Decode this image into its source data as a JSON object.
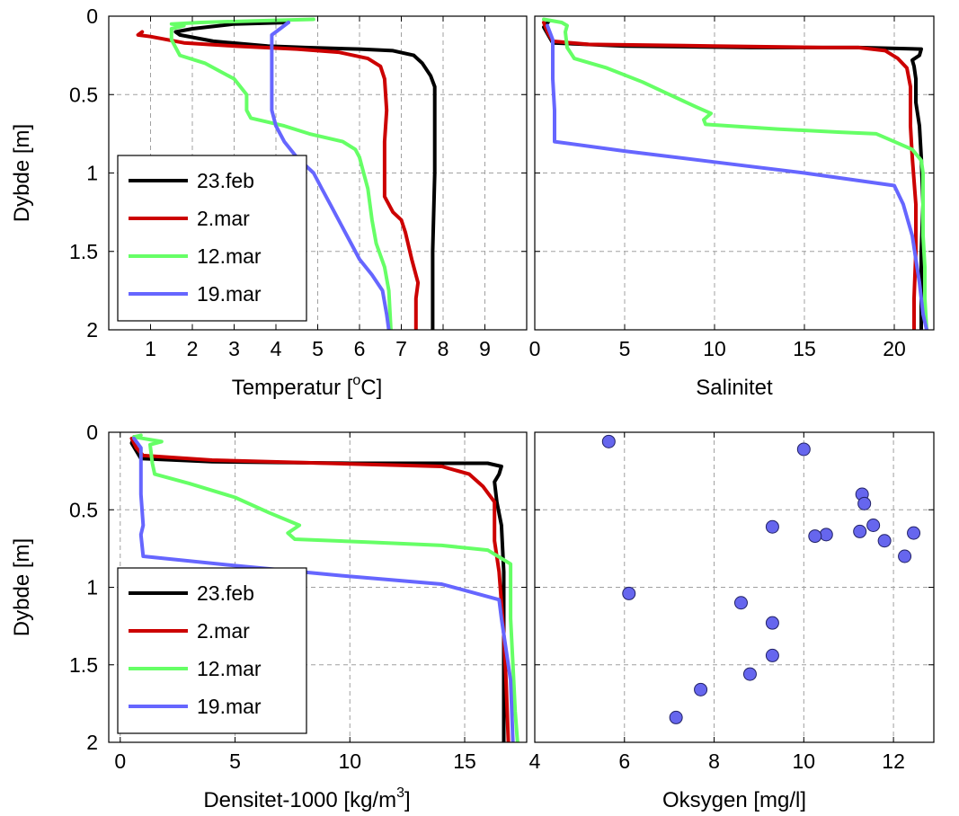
{
  "figure": {
    "background": "#ffffff"
  },
  "series_colors": {
    "23.feb": "#000000",
    "2.mar": "#cc0000",
    "12.mar": "#66ff66",
    "19.mar": "#6666ff"
  },
  "chart_data": [
    {
      "type": "line",
      "title": "",
      "xlabel": "Temperatur [",
      "xlabel_sup": "o",
      "xlabel_after": "C]",
      "ylabel": "Dybde [m]",
      "xlim": [
        0,
        10
      ],
      "ylim": [
        0,
        2
      ],
      "y_reversed": true,
      "grid": true,
      "xticks": [
        1,
        2,
        3,
        4,
        5,
        6,
        7,
        8,
        9
      ],
      "xtick_labels": [
        "1",
        "2",
        "3",
        "4",
        "5",
        "6",
        "7",
        "8",
        "9"
      ],
      "yticks": [
        0,
        0.5,
        1,
        1.5,
        2
      ],
      "ytick_labels": [
        "0",
        "0.5",
        "1",
        "1.5",
        "2"
      ],
      "legend": {
        "position": "bottom-left"
      },
      "series": [
        {
          "name": "23.feb",
          "color": "#000000",
          "points": [
            [
              4.3,
              0.04
            ],
            [
              3.0,
              0.05
            ],
            [
              2.0,
              0.08
            ],
            [
              1.6,
              0.1
            ],
            [
              1.7,
              0.12
            ],
            [
              2.5,
              0.16
            ],
            [
              3.8,
              0.19
            ],
            [
              4.7,
              0.2
            ],
            [
              6.0,
              0.21
            ],
            [
              6.8,
              0.22
            ],
            [
              7.3,
              0.25
            ],
            [
              7.5,
              0.3
            ],
            [
              7.7,
              0.38
            ],
            [
              7.8,
              0.45
            ],
            [
              7.8,
              0.7
            ],
            [
              7.8,
              1.0
            ],
            [
              7.75,
              1.5
            ],
            [
              7.75,
              2.0
            ]
          ]
        },
        {
          "name": "2.mar",
          "color": "#cc0000",
          "points": [
            [
              0.8,
              0.1
            ],
            [
              0.7,
              0.12
            ],
            [
              1.0,
              0.13
            ],
            [
              1.8,
              0.17
            ],
            [
              3.0,
              0.19
            ],
            [
              4.5,
              0.21
            ],
            [
              5.5,
              0.23
            ],
            [
              6.2,
              0.27
            ],
            [
              6.5,
              0.32
            ],
            [
              6.6,
              0.4
            ],
            [
              6.65,
              0.6
            ],
            [
              6.6,
              0.8
            ],
            [
              6.6,
              1.0
            ],
            [
              6.6,
              1.15
            ],
            [
              6.8,
              1.25
            ],
            [
              7.0,
              1.3
            ],
            [
              7.1,
              1.38
            ],
            [
              7.25,
              1.55
            ],
            [
              7.4,
              1.7
            ],
            [
              7.35,
              1.8
            ],
            [
              7.35,
              2.0
            ]
          ]
        },
        {
          "name": "12.mar",
          "color": "#66ff66",
          "points": [
            [
              4.9,
              0.02
            ],
            [
              3.5,
              0.03
            ],
            [
              2.2,
              0.04
            ],
            [
              1.5,
              0.05
            ],
            [
              1.8,
              0.06
            ],
            [
              1.5,
              0.08
            ],
            [
              1.5,
              0.15
            ],
            [
              1.7,
              0.25
            ],
            [
              2.3,
              0.3
            ],
            [
              3.0,
              0.4
            ],
            [
              3.3,
              0.5
            ],
            [
              3.3,
              0.6
            ],
            [
              3.4,
              0.65
            ],
            [
              4.2,
              0.7
            ],
            [
              4.8,
              0.75
            ],
            [
              5.6,
              0.8
            ],
            [
              5.9,
              0.85
            ],
            [
              6.0,
              0.9
            ],
            [
              6.1,
              1.0
            ],
            [
              6.2,
              1.1
            ],
            [
              6.3,
              1.3
            ],
            [
              6.4,
              1.45
            ],
            [
              6.6,
              1.6
            ],
            [
              6.7,
              1.75
            ],
            [
              6.75,
              2.0
            ]
          ]
        },
        {
          "name": "19.mar",
          "color": "#6666ff",
          "points": [
            [
              4.3,
              0.04
            ],
            [
              4.0,
              0.1
            ],
            [
              3.9,
              0.12
            ],
            [
              3.9,
              0.3
            ],
            [
              3.9,
              0.6
            ],
            [
              4.0,
              0.7
            ],
            [
              4.2,
              0.8
            ],
            [
              4.5,
              0.9
            ],
            [
              4.9,
              1.0
            ],
            [
              5.1,
              1.1
            ],
            [
              5.3,
              1.2
            ],
            [
              5.6,
              1.35
            ],
            [
              5.8,
              1.45
            ],
            [
              6.0,
              1.55
            ],
            [
              6.3,
              1.65
            ],
            [
              6.55,
              1.75
            ],
            [
              6.65,
              1.9
            ],
            [
              6.7,
              2.0
            ]
          ]
        }
      ]
    },
    {
      "type": "line",
      "title": "",
      "xlabel": "Salinitet",
      "ylabel": "",
      "xlim": [
        0,
        22.2
      ],
      "ylim": [
        0,
        2
      ],
      "y_reversed": true,
      "grid": true,
      "xticks": [
        0,
        5,
        10,
        15,
        20
      ],
      "xtick_labels": [
        "0",
        "5",
        "10",
        "15",
        "20"
      ],
      "yticks": [
        0,
        0.5,
        1,
        1.5,
        2
      ],
      "series": [
        {
          "name": "23.feb",
          "color": "#000000",
          "points": [
            [
              0.8,
              0.03
            ],
            [
              0.5,
              0.07
            ],
            [
              1.0,
              0.17
            ],
            [
              5.0,
              0.19
            ],
            [
              12.0,
              0.2
            ],
            [
              18.0,
              0.2
            ],
            [
              21.5,
              0.21
            ],
            [
              21.4,
              0.25
            ],
            [
              21.0,
              0.28
            ],
            [
              21.1,
              0.32
            ],
            [
              21.2,
              0.4
            ],
            [
              21.2,
              0.55
            ],
            [
              21.4,
              0.7
            ],
            [
              21.5,
              0.9
            ],
            [
              21.6,
              1.2
            ],
            [
              21.5,
              1.5
            ],
            [
              21.5,
              2.0
            ]
          ]
        },
        {
          "name": "2.mar",
          "color": "#cc0000",
          "points": [
            [
              0.5,
              0.04
            ],
            [
              0.7,
              0.1
            ],
            [
              1.0,
              0.16
            ],
            [
              3.0,
              0.18
            ],
            [
              10.0,
              0.19
            ],
            [
              16.0,
              0.2
            ],
            [
              18.0,
              0.2
            ],
            [
              19.5,
              0.22
            ],
            [
              20.2,
              0.27
            ],
            [
              20.7,
              0.33
            ],
            [
              20.9,
              0.45
            ],
            [
              20.9,
              0.7
            ],
            [
              21.0,
              0.9
            ],
            [
              21.2,
              1.2
            ],
            [
              21.2,
              1.5
            ],
            [
              21.1,
              1.8
            ],
            [
              21.1,
              2.0
            ]
          ]
        },
        {
          "name": "12.mar",
          "color": "#66ff66",
          "points": [
            [
              0.5,
              0.02
            ],
            [
              1.5,
              0.04
            ],
            [
              1.8,
              0.06
            ],
            [
              1.7,
              0.1
            ],
            [
              1.8,
              0.2
            ],
            [
              2.2,
              0.27
            ],
            [
              4.0,
              0.33
            ],
            [
              6.0,
              0.42
            ],
            [
              7.5,
              0.5
            ],
            [
              9.0,
              0.58
            ],
            [
              9.8,
              0.62
            ],
            [
              9.4,
              0.66
            ],
            [
              9.5,
              0.69
            ],
            [
              13.5,
              0.72
            ],
            [
              17.0,
              0.74
            ],
            [
              19.0,
              0.75
            ],
            [
              20.0,
              0.8
            ],
            [
              21.0,
              0.85
            ],
            [
              21.5,
              0.92
            ],
            [
              21.6,
              1.0
            ],
            [
              21.6,
              1.2
            ],
            [
              21.6,
              1.4
            ],
            [
              21.7,
              1.6
            ],
            [
              21.7,
              1.8
            ],
            [
              21.8,
              2.0
            ]
          ]
        },
        {
          "name": "19.mar",
          "color": "#6666ff",
          "points": [
            [
              0.7,
              0.06
            ],
            [
              1.0,
              0.15
            ],
            [
              1.0,
              0.4
            ],
            [
              1.1,
              0.6
            ],
            [
              1.1,
              0.8
            ],
            [
              5.0,
              0.86
            ],
            [
              10.0,
              0.93
            ],
            [
              15.0,
              1.0
            ],
            [
              20.0,
              1.08
            ],
            [
              20.5,
              1.2
            ],
            [
              21.0,
              1.4
            ],
            [
              21.4,
              1.7
            ],
            [
              21.6,
              1.9
            ],
            [
              21.8,
              2.0
            ]
          ]
        }
      ]
    },
    {
      "type": "line",
      "title": "",
      "xlabel": "Densitet-1000 [kg/m",
      "xlabel_sup": "3",
      "xlabel_after": "]",
      "ylabel": "Dybde [m]",
      "xlim": [
        -0.5,
        17.7
      ],
      "ylim": [
        0,
        2
      ],
      "y_reversed": true,
      "grid": true,
      "xticks": [
        0,
        5,
        10,
        15
      ],
      "xtick_labels": [
        "0",
        "5",
        "10",
        "15"
      ],
      "yticks": [
        0,
        0.5,
        1,
        1.5,
        2
      ],
      "ytick_labels": [
        "0",
        "0.5",
        "1",
        "1.5",
        "2"
      ],
      "legend": {
        "position": "bottom-left"
      },
      "series": [
        {
          "name": "23.feb",
          "color": "#000000",
          "points": [
            [
              0.6,
              0.03
            ],
            [
              0.5,
              0.07
            ],
            [
              0.9,
              0.17
            ],
            [
              4.0,
              0.19
            ],
            [
              10.0,
              0.2
            ],
            [
              16.0,
              0.2
            ],
            [
              16.6,
              0.22
            ],
            [
              16.5,
              0.27
            ],
            [
              16.3,
              0.32
            ],
            [
              16.4,
              0.45
            ],
            [
              16.6,
              0.6
            ],
            [
              16.7,
              0.9
            ],
            [
              16.7,
              1.2
            ],
            [
              16.7,
              1.6
            ],
            [
              16.7,
              2.0
            ]
          ]
        },
        {
          "name": "2.mar",
          "color": "#cc0000",
          "points": [
            [
              0.5,
              0.04
            ],
            [
              0.7,
              0.1
            ],
            [
              1.0,
              0.15
            ],
            [
              4.0,
              0.18
            ],
            [
              9.0,
              0.2
            ],
            [
              14.0,
              0.22
            ],
            [
              15.2,
              0.27
            ],
            [
              15.8,
              0.35
            ],
            [
              16.3,
              0.45
            ],
            [
              16.3,
              0.7
            ],
            [
              16.5,
              0.9
            ],
            [
              16.6,
              1.1
            ],
            [
              16.7,
              1.3
            ],
            [
              16.8,
              1.6
            ],
            [
              16.9,
              2.0
            ]
          ]
        },
        {
          "name": "12.mar",
          "color": "#66ff66",
          "points": [
            [
              0.9,
              0.02
            ],
            [
              0.6,
              0.03
            ],
            [
              1.8,
              0.06
            ],
            [
              1.3,
              0.08
            ],
            [
              1.4,
              0.2
            ],
            [
              1.5,
              0.27
            ],
            [
              3.0,
              0.33
            ],
            [
              5.0,
              0.42
            ],
            [
              6.5,
              0.52
            ],
            [
              7.8,
              0.6
            ],
            [
              7.3,
              0.65
            ],
            [
              7.6,
              0.69
            ],
            [
              11.0,
              0.71
            ],
            [
              14.0,
              0.73
            ],
            [
              16.0,
              0.76
            ],
            [
              17.0,
              0.85
            ],
            [
              17.0,
              1.0
            ],
            [
              17.0,
              1.2
            ],
            [
              17.1,
              1.5
            ],
            [
              17.2,
              1.8
            ],
            [
              17.3,
              2.0
            ]
          ]
        },
        {
          "name": "19.mar",
          "color": "#6666ff",
          "points": [
            [
              0.6,
              0.04
            ],
            [
              0.9,
              0.1
            ],
            [
              0.9,
              0.4
            ],
            [
              1.0,
              0.6
            ],
            [
              0.9,
              0.66
            ],
            [
              1.0,
              0.8
            ],
            [
              5.0,
              0.86
            ],
            [
              10.0,
              0.93
            ],
            [
              14.0,
              0.98
            ],
            [
              16.5,
              1.08
            ],
            [
              16.6,
              1.2
            ],
            [
              16.8,
              1.4
            ],
            [
              17.0,
              1.6
            ],
            [
              17.1,
              2.0
            ]
          ]
        }
      ]
    },
    {
      "type": "scatter",
      "title": "",
      "xlabel": "Oksygen [mg/l]",
      "ylabel": "",
      "xlim": [
        4,
        12.9
      ],
      "ylim": [
        0,
        2
      ],
      "y_reversed": true,
      "grid": true,
      "xticks": [
        4,
        6,
        8,
        10,
        12
      ],
      "xtick_labels": [
        "4",
        "6",
        "8",
        "10",
        "12"
      ],
      "yticks": [
        0,
        0.5,
        1,
        1.5,
        2
      ],
      "marker_color": "#6666ee",
      "points": [
        [
          5.65,
          0.06
        ],
        [
          10.0,
          0.11
        ],
        [
          11.3,
          0.4
        ],
        [
          11.35,
          0.46
        ],
        [
          9.3,
          0.61
        ],
        [
          11.55,
          0.6
        ],
        [
          12.45,
          0.65
        ],
        [
          11.25,
          0.64
        ],
        [
          10.5,
          0.66
        ],
        [
          10.25,
          0.67
        ],
        [
          11.8,
          0.7
        ],
        [
          12.25,
          0.8
        ],
        [
          6.1,
          1.04
        ],
        [
          8.6,
          1.1
        ],
        [
          9.3,
          1.23
        ],
        [
          9.3,
          1.44
        ],
        [
          8.8,
          1.56
        ],
        [
          7.7,
          1.66
        ],
        [
          7.15,
          1.84
        ]
      ]
    }
  ]
}
